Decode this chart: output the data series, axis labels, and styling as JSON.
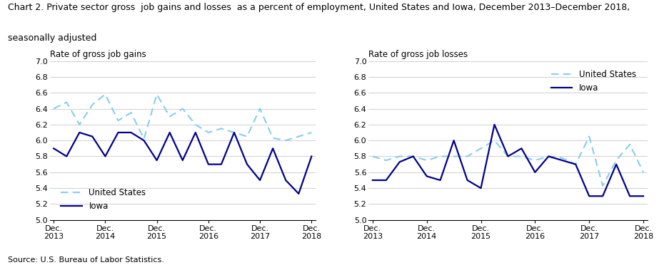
{
  "title_line1": "Chart 2. Private sector gross  job gains and losses  as a percent of employment, United States and Iowa, December 2013–December 2018,",
  "title_line2": "seasonally adjusted",
  "title_fontsize": 9.0,
  "source": "Source: U.S. Bureau of Labor Statistics.",
  "left_ylabel": "Rate of gross job gains",
  "right_ylabel": "Rate of gross job losses",
  "ylim": [
    5.0,
    7.0
  ],
  "yticks": [
    5.0,
    5.2,
    5.4,
    5.6,
    5.8,
    6.0,
    6.2,
    6.4,
    6.6,
    6.8,
    7.0
  ],
  "xtick_labels": [
    "Dec.\n2013",
    "Dec.\n2014",
    "Dec.\n2015",
    "Dec.\n2016",
    "Dec.\n2017",
    "Dec.\n2018"
  ],
  "xtick_positions": [
    0,
    4,
    8,
    12,
    16,
    20
  ],
  "us_color": "#87CEEB",
  "iowa_color": "#00008B",
  "gains_us": [
    6.4,
    6.48,
    6.2,
    6.45,
    6.58,
    6.25,
    6.35,
    6.02,
    6.58,
    6.3,
    6.4,
    6.2,
    6.1,
    6.15,
    6.1,
    6.05,
    6.4,
    6.03,
    6.0,
    6.05,
    6.1
  ],
  "gains_iowa": [
    5.9,
    5.8,
    6.1,
    6.05,
    5.8,
    6.1,
    6.1,
    6.0,
    5.75,
    6.1,
    5.75,
    6.1,
    5.7,
    5.7,
    6.1,
    5.7,
    5.5,
    5.9,
    5.5,
    5.33,
    5.8
  ],
  "losses_us": [
    5.8,
    5.75,
    5.8,
    5.8,
    5.75,
    5.8,
    5.8,
    5.8,
    5.9,
    6.0,
    5.8,
    5.8,
    5.75,
    5.8,
    5.78,
    5.7,
    6.05,
    5.43,
    5.75,
    5.95,
    5.6
  ],
  "losses_iowa": [
    5.5,
    5.5,
    5.73,
    5.8,
    5.55,
    5.5,
    6.0,
    5.5,
    5.4,
    6.2,
    5.8,
    5.9,
    5.6,
    5.8,
    5.75,
    5.7,
    5.3,
    5.3,
    5.7,
    5.3,
    5.3
  ]
}
